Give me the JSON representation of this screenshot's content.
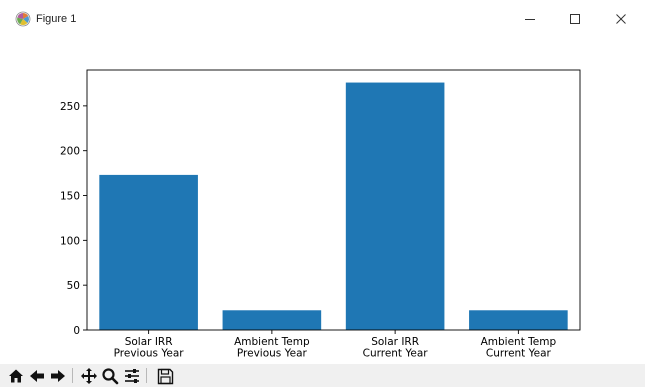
{
  "window": {
    "title": "Figure 1",
    "icon": "matplotlib-icon",
    "controls": [
      "minimize-icon",
      "maximize-icon",
      "close-icon"
    ]
  },
  "chart_data": {
    "type": "bar",
    "categories": [
      "Solar IRR\nPrevious Year",
      "Ambient Temp\nPrevious Year",
      "Solar IRR\nCurrent Year",
      "Ambient Temp\nCurrent Year"
    ],
    "values": [
      173,
      22,
      276,
      22
    ],
    "ylim": [
      0,
      290
    ],
    "yticks": [
      0,
      50,
      100,
      150,
      200,
      250
    ],
    "bar_color": "#1f77b4",
    "grid": false,
    "legend": "none"
  },
  "toolbar": {
    "tools": [
      {
        "name": "home-icon"
      },
      {
        "name": "back-icon"
      },
      {
        "name": "forward-icon"
      },
      {
        "name": "pan-icon"
      },
      {
        "name": "zoom-icon"
      },
      {
        "name": "configure-subplots-icon"
      },
      {
        "name": "save-icon"
      }
    ]
  }
}
